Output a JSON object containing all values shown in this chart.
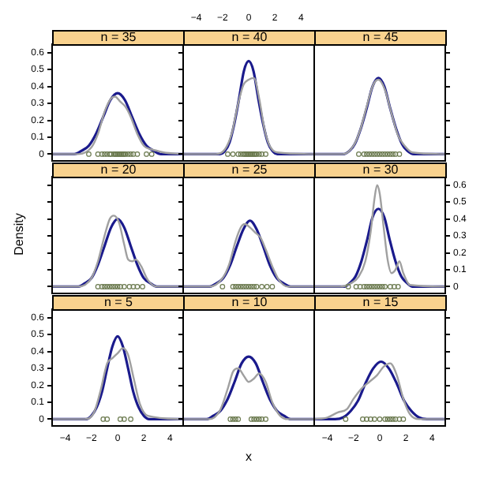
{
  "chart_data": [
    {
      "type": "line",
      "title": "n = 35",
      "xlim": [
        -5,
        5
      ],
      "xticks": [
        -4,
        -2,
        0,
        2,
        4
      ],
      "ylim": [
        -0.04,
        0.65
      ],
      "yticks": [
        0,
        0.1,
        0.2,
        0.3,
        0.4,
        0.5,
        0.6
      ],
      "tick_labels": "y",
      "series": [
        {
          "type": "scatter",
          "marker": "circle",
          "color": "#6b7a4f",
          "x": [
            -2.2,
            -1.5,
            -1.2,
            -1.0,
            -0.8,
            -0.6,
            -0.5,
            -0.3,
            -0.2,
            -0.1,
            0,
            0.1,
            0.2,
            0.3,
            0.4,
            0.5,
            0.6,
            0.8,
            1.0,
            1.2,
            1.5,
            2.2,
            2.6
          ],
          "values": [
            0,
            0,
            0,
            0,
            0,
            0,
            0,
            0,
            0,
            0,
            0,
            0,
            0,
            0,
            0,
            0,
            0,
            0,
            0,
            0,
            0,
            0,
            0
          ]
        },
        {
          "color": "#a0a0a0",
          "x": [
            -5,
            -3,
            -2,
            -1.5,
            -1,
            -0.5,
            -0.2,
            0.2,
            0.6,
            1,
            1.5,
            2,
            2.5,
            3,
            3.5,
            5
          ],
          "values": [
            0,
            0,
            0.04,
            0.12,
            0.25,
            0.33,
            0.34,
            0.31,
            0.28,
            0.22,
            0.12,
            0.05,
            0.03,
            0.02,
            0.01,
            0
          ]
        },
        {
          "color": "#1a1a8c",
          "x": [
            -5,
            -3.3,
            -2.75,
            -2.2,
            -1.65,
            -1.1,
            -0.55,
            0,
            0.55,
            1.1,
            1.65,
            2.2,
            2.75,
            3.3,
            5
          ],
          "values": [
            0,
            0,
            0.02,
            0.05,
            0.12,
            0.22,
            0.32,
            0.36,
            0.32,
            0.22,
            0.12,
            0.05,
            0.02,
            0,
            0
          ]
        }
      ]
    },
    {
      "type": "line",
      "title": "n = 40",
      "xlim": [
        -5,
        5
      ],
      "xticks": [
        -4,
        -2,
        0,
        2,
        4
      ],
      "ylim": [
        -0.04,
        0.65
      ],
      "yticks": [
        0,
        0.1,
        0.2,
        0.3,
        0.4,
        0.5,
        0.6
      ],
      "tick_labels": "x",
      "series": [
        {
          "type": "scatter",
          "marker": "circle",
          "color": "#6b7a4f",
          "x": [
            -1.6,
            -1.2,
            -0.8,
            -0.6,
            -0.4,
            -0.3,
            -0.2,
            -0.1,
            0,
            0.1,
            0.2,
            0.3,
            0.4,
            0.5,
            0.6,
            0.8,
            1.0,
            1.3
          ],
          "values": [
            0,
            0,
            0,
            0,
            0,
            0,
            0,
            0,
            0,
            0,
            0,
            0,
            0,
            0,
            0,
            0,
            0,
            0
          ]
        },
        {
          "color": "#a0a0a0",
          "x": [
            -5,
            -2.5,
            -1.8,
            -1.3,
            -0.8,
            -0.4,
            0,
            0.4,
            0.8,
            1.2,
            1.6,
            2.2,
            5
          ],
          "values": [
            0,
            0,
            0.03,
            0.12,
            0.3,
            0.41,
            0.44,
            0.45,
            0.33,
            0.15,
            0.05,
            0.01,
            0
          ]
        },
        {
          "color": "#1a1a8c",
          "x": [
            -5,
            -2.2,
            -1.8,
            -1.46,
            -1.1,
            -0.73,
            -0.37,
            0,
            0.37,
            0.73,
            1.1,
            1.46,
            1.8,
            2.2,
            5
          ],
          "values": [
            0,
            0,
            0.02,
            0.07,
            0.18,
            0.33,
            0.49,
            0.55,
            0.49,
            0.33,
            0.18,
            0.07,
            0.02,
            0,
            0
          ]
        }
      ]
    },
    {
      "type": "line",
      "title": "n = 45",
      "xlim": [
        -5,
        5
      ],
      "xticks": [
        -4,
        -2,
        0,
        2,
        4
      ],
      "ylim": [
        -0.04,
        0.65
      ],
      "yticks": [
        0,
        0.1,
        0.2,
        0.3,
        0.4,
        0.5,
        0.6
      ],
      "tick_labels": false,
      "series": [
        {
          "type": "scatter",
          "marker": "circle",
          "color": "#6b7a4f",
          "x": [
            -1.6,
            -1.2,
            -1.0,
            -0.8,
            -0.6,
            -0.4,
            -0.2,
            0,
            0.2,
            0.4,
            0.6,
            0.8,
            1.0,
            1.2,
            1.5
          ],
          "values": [
            0,
            0,
            0,
            0,
            0,
            0,
            0,
            0,
            0,
            0,
            0,
            0,
            0,
            0,
            0
          ]
        },
        {
          "color": "#a0a0a0",
          "x": [
            -5,
            -2.8,
            -2,
            -1.5,
            -1,
            -0.5,
            -0.1,
            0.4,
            0.9,
            1.4,
            1.9,
            2.5,
            5
          ],
          "values": [
            0,
            0,
            0.05,
            0.14,
            0.28,
            0.41,
            0.44,
            0.38,
            0.24,
            0.11,
            0.05,
            0.01,
            0
          ]
        },
        {
          "color": "#1a1a8c",
          "x": [
            -5,
            -2.8,
            -2.3,
            -1.9,
            -1.45,
            -1.0,
            -0.55,
            -0.1,
            0.35,
            0.8,
            1.25,
            1.7,
            2.1,
            2.6,
            5
          ],
          "values": [
            0,
            0,
            0.02,
            0.06,
            0.15,
            0.27,
            0.4,
            0.45,
            0.4,
            0.27,
            0.15,
            0.06,
            0.02,
            0,
            0
          ]
        }
      ]
    },
    {
      "type": "line",
      "title": "n = 20",
      "ylabel": "Density",
      "xlim": [
        -5,
        5
      ],
      "xticks": [
        -4,
        -2,
        0,
        2,
        4
      ],
      "ylim": [
        -0.04,
        0.65
      ],
      "yticks": [
        0,
        0.1,
        0.2,
        0.3,
        0.4,
        0.5,
        0.6
      ],
      "tick_labels": false,
      "series": [
        {
          "type": "scatter",
          "marker": "circle",
          "color": "#6b7a4f",
          "x": [
            -1.5,
            -1.2,
            -1,
            -0.8,
            -0.6,
            -0.4,
            -0.2,
            0,
            0.2,
            0.5,
            0.9,
            1.2,
            1.5,
            1.9
          ],
          "values": [
            0,
            0,
            0,
            0,
            0,
            0,
            0,
            0,
            0,
            0,
            0,
            0,
            0,
            0
          ]
        },
        {
          "color": "#a0a0a0",
          "x": [
            -5,
            -3,
            -2,
            -1.5,
            -1,
            -0.6,
            -0.3,
            0.1,
            0.5,
            0.8,
            1.1,
            1.4,
            1.8,
            2.3,
            3,
            5
          ],
          "values": [
            0,
            0,
            0.05,
            0.15,
            0.3,
            0.4,
            0.42,
            0.38,
            0.25,
            0.16,
            0.15,
            0.16,
            0.12,
            0.04,
            0,
            0
          ]
        },
        {
          "color": "#1a1a8c",
          "x": [
            -5,
            -3,
            -2.5,
            -2,
            -1.5,
            -1,
            -0.5,
            0,
            0.5,
            1,
            1.5,
            2,
            2.5,
            3,
            5
          ],
          "values": [
            0,
            0,
            0.02,
            0.05,
            0.13,
            0.24,
            0.35,
            0.4,
            0.35,
            0.24,
            0.13,
            0.05,
            0.02,
            0,
            0
          ]
        }
      ]
    },
    {
      "type": "line",
      "title": "n = 25",
      "xlim": [
        -5,
        5
      ],
      "xticks": [
        -4,
        -2,
        0,
        2,
        4
      ],
      "ylim": [
        -0.04,
        0.65
      ],
      "yticks": [
        0,
        0.1,
        0.2,
        0.3,
        0.4,
        0.5,
        0.6
      ],
      "tick_labels": false,
      "series": [
        {
          "type": "scatter",
          "marker": "circle",
          "color": "#6b7a4f",
          "x": [
            -2.0,
            -1.2,
            -1.0,
            -0.8,
            -0.6,
            -0.4,
            -0.2,
            0,
            0.2,
            0.4,
            0.6,
            1.0,
            1.4,
            1.8
          ],
          "values": [
            0,
            0,
            0,
            0,
            0,
            0,
            0,
            0,
            0,
            0,
            0,
            0,
            0,
            0
          ]
        },
        {
          "color": "#a0a0a0",
          "x": [
            -5,
            -3,
            -2,
            -1.5,
            -1,
            -0.6,
            -0.3,
            0.1,
            0.5,
            0.9,
            1.3,
            1.8,
            2.3,
            3,
            5
          ],
          "values": [
            0,
            0,
            0.05,
            0.13,
            0.27,
            0.35,
            0.37,
            0.35,
            0.32,
            0.29,
            0.22,
            0.12,
            0.04,
            0,
            0
          ]
        },
        {
          "color": "#1a1a8c",
          "x": [
            -5,
            -3,
            -2.45,
            -1.95,
            -1.4,
            -0.9,
            -0.4,
            0.1,
            0.6,
            1.1,
            1.6,
            2.15,
            2.65,
            3.2,
            5
          ],
          "values": [
            0,
            0,
            0.02,
            0.05,
            0.13,
            0.24,
            0.34,
            0.39,
            0.34,
            0.24,
            0.13,
            0.05,
            0.02,
            0,
            0
          ]
        }
      ]
    },
    {
      "type": "line",
      "title": "n = 30",
      "xlim": [
        -5,
        5
      ],
      "xticks": [
        -4,
        -2,
        0,
        2,
        4
      ],
      "ylim": [
        -0.04,
        0.65
      ],
      "yticks": [
        0,
        0.1,
        0.2,
        0.3,
        0.4,
        0.5,
        0.6
      ],
      "tick_labels": "y",
      "series": [
        {
          "type": "scatter",
          "marker": "circle",
          "color": "#6b7a4f",
          "x": [
            -2.4,
            -1.8,
            -1.5,
            -1.2,
            -1,
            -0.8,
            -0.6,
            -0.4,
            -0.2,
            0,
            0.2,
            0.4,
            0.8,
            1.1,
            1.4
          ],
          "values": [
            0,
            0,
            0,
            0,
            0,
            0,
            0,
            0,
            0,
            0,
            0,
            0,
            0,
            0,
            0
          ]
        },
        {
          "color": "#a0a0a0",
          "x": [
            -5,
            -3,
            -2.2,
            -1.6,
            -1.1,
            -0.7,
            -0.4,
            -0.2,
            0,
            0.3,
            0.6,
            0.9,
            1.2,
            1.5,
            1.8,
            2.3,
            5
          ],
          "values": [
            0,
            0,
            0.02,
            0.06,
            0.15,
            0.32,
            0.52,
            0.6,
            0.55,
            0.35,
            0.16,
            0.08,
            0.1,
            0.15,
            0.08,
            0.01,
            0
          ]
        },
        {
          "color": "#1a1a8c",
          "x": [
            -5,
            -2.7,
            -2.3,
            -1.85,
            -1.4,
            -0.95,
            -0.55,
            -0.1,
            0.35,
            0.75,
            1.2,
            1.65,
            2.1,
            2.5,
            5
          ],
          "values": [
            0,
            0,
            0.02,
            0.06,
            0.15,
            0.28,
            0.41,
            0.46,
            0.41,
            0.28,
            0.15,
            0.06,
            0.02,
            0,
            0
          ]
        }
      ]
    },
    {
      "type": "line",
      "title": "n = 5",
      "xlim": [
        -5,
        5
      ],
      "xticks": [
        -4,
        -2,
        0,
        2,
        4
      ],
      "ylim": [
        -0.04,
        0.65
      ],
      "yticks": [
        0,
        0.1,
        0.2,
        0.3,
        0.4,
        0.5,
        0.6
      ],
      "series": [
        {
          "type": "scatter",
          "marker": "circle",
          "color": "#6b7a4f",
          "x": [
            -1.1,
            -0.8,
            0.2,
            0.5,
            1.0
          ],
          "values": [
            0,
            0,
            0,
            0,
            0
          ]
        },
        {
          "color": "#a0a0a0",
          "x": [
            -5,
            -2.5,
            -1.8,
            -1.3,
            -0.8,
            -0.4,
            0,
            0.4,
            0.8,
            1.2,
            1.7,
            2.3,
            5
          ],
          "values": [
            0,
            0,
            0.04,
            0.17,
            0.33,
            0.36,
            0.39,
            0.42,
            0.38,
            0.25,
            0.09,
            0.02,
            0
          ]
        },
        {
          "color": "#1a1a8c",
          "x": [
            -5,
            -2.4,
            -2,
            -1.6,
            -1.2,
            -0.8,
            -0.4,
            0,
            0.4,
            0.8,
            1.2,
            1.6,
            2,
            2.4,
            5
          ],
          "values": [
            0,
            0,
            0.02,
            0.07,
            0.16,
            0.3,
            0.43,
            0.49,
            0.43,
            0.3,
            0.16,
            0.07,
            0.02,
            0,
            0
          ]
        }
      ]
    },
    {
      "type": "line",
      "title": "n = 10",
      "xlabel": "x",
      "xlim": [
        -5,
        5
      ],
      "xticks": [
        -4,
        -2,
        0,
        2,
        4
      ],
      "ylim": [
        -0.04,
        0.65
      ],
      "yticks": [
        0,
        0.1,
        0.2,
        0.3,
        0.4,
        0.5,
        0.6
      ],
      "tick_labels": false,
      "series": [
        {
          "type": "scatter",
          "marker": "circle",
          "color": "#6b7a4f",
          "x": [
            -1.4,
            -1.2,
            -1.0,
            -0.8,
            0.2,
            0.4,
            0.6,
            0.8,
            1.0,
            1.3
          ],
          "values": [
            0,
            0,
            0,
            0,
            0,
            0,
            0,
            0,
            0,
            0
          ]
        },
        {
          "color": "#a0a0a0",
          "x": [
            -5,
            -3,
            -2.2,
            -1.6,
            -1.2,
            -0.8,
            -0.4,
            0,
            0.4,
            0.8,
            1.3,
            1.8,
            2.4,
            3,
            5
          ],
          "values": [
            0,
            0,
            0.05,
            0.18,
            0.28,
            0.3,
            0.26,
            0.22,
            0.24,
            0.27,
            0.22,
            0.1,
            0.02,
            0,
            0
          ]
        },
        {
          "color": "#1a1a8c",
          "x": [
            -5,
            -3.2,
            -2.7,
            -2.15,
            -1.6,
            -1.08,
            -0.54,
            0,
            0.54,
            1.08,
            1.6,
            2.15,
            2.7,
            3.2,
            5
          ],
          "values": [
            0,
            0,
            0.02,
            0.05,
            0.12,
            0.22,
            0.33,
            0.37,
            0.33,
            0.22,
            0.12,
            0.05,
            0.02,
            0,
            0
          ]
        }
      ]
    },
    {
      "type": "line",
      "title": "n = 15",
      "xlim": [
        -5,
        5
      ],
      "xticks": [
        -4,
        -2,
        0,
        2,
        4
      ],
      "ylim": [
        -0.04,
        0.65
      ],
      "yticks": [
        0,
        0.1,
        0.2,
        0.3,
        0.4,
        0.5,
        0.6
      ],
      "tick_labels": "x",
      "series": [
        {
          "type": "scatter",
          "marker": "circle",
          "color": "#6b7a4f",
          "x": [
            -2.6,
            -1.3,
            -1.0,
            -0.7,
            -0.4,
            0,
            0.4,
            0.6,
            0.8,
            1.0,
            1.2,
            1.5,
            1.8
          ],
          "values": [
            0,
            0,
            0,
            0,
            0,
            0,
            0,
            0,
            0,
            0,
            0,
            0,
            0
          ]
        },
        {
          "color": "#a0a0a0",
          "x": [
            -5,
            -4,
            -3.2,
            -2.5,
            -2,
            -1.4,
            -0.8,
            -0.2,
            0.3,
            0.8,
            1.3,
            1.8,
            2.3,
            3,
            5
          ],
          "values": [
            0,
            0.01,
            0.04,
            0.06,
            0.12,
            0.18,
            0.22,
            0.26,
            0.31,
            0.33,
            0.26,
            0.12,
            0.03,
            0,
            0
          ]
        },
        {
          "color": "#1a1a8c",
          "x": [
            -5,
            -3.4,
            -2.8,
            -2.2,
            -1.65,
            -1.1,
            -0.5,
            0.1,
            0.7,
            1.3,
            1.85,
            2.4,
            3,
            3.6,
            5
          ],
          "values": [
            0,
            0,
            0.01,
            0.05,
            0.11,
            0.21,
            0.3,
            0.34,
            0.3,
            0.21,
            0.11,
            0.05,
            0.01,
            0,
            0
          ]
        }
      ]
    }
  ]
}
